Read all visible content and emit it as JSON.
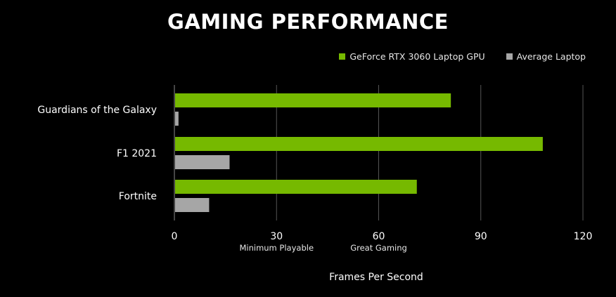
{
  "chart_data": {
    "type": "bar",
    "orientation": "horizontal",
    "title": "GAMING PERFORMANCE",
    "categories": [
      "Guardians of the Galaxy",
      "F1 2021",
      "Fortnite"
    ],
    "series": [
      {
        "name": "GeForce RTX 3060 Laptop GPU",
        "color": "#76b900",
        "values": [
          81,
          108,
          71
        ]
      },
      {
        "name": "Average Laptop",
        "color": "#a6a6a6",
        "values": [
          1,
          16,
          10
        ]
      }
    ],
    "xlabel": "Frames Per Second",
    "ylabel": "",
    "xlim": [
      0,
      120
    ],
    "xticks": [
      0,
      30,
      60,
      90,
      120
    ],
    "annotations": [
      {
        "x": 30,
        "text": "Minimum Playable"
      },
      {
        "x": 60,
        "text": "Great Gaming"
      }
    ],
    "grid": true,
    "legend": "top-right"
  }
}
